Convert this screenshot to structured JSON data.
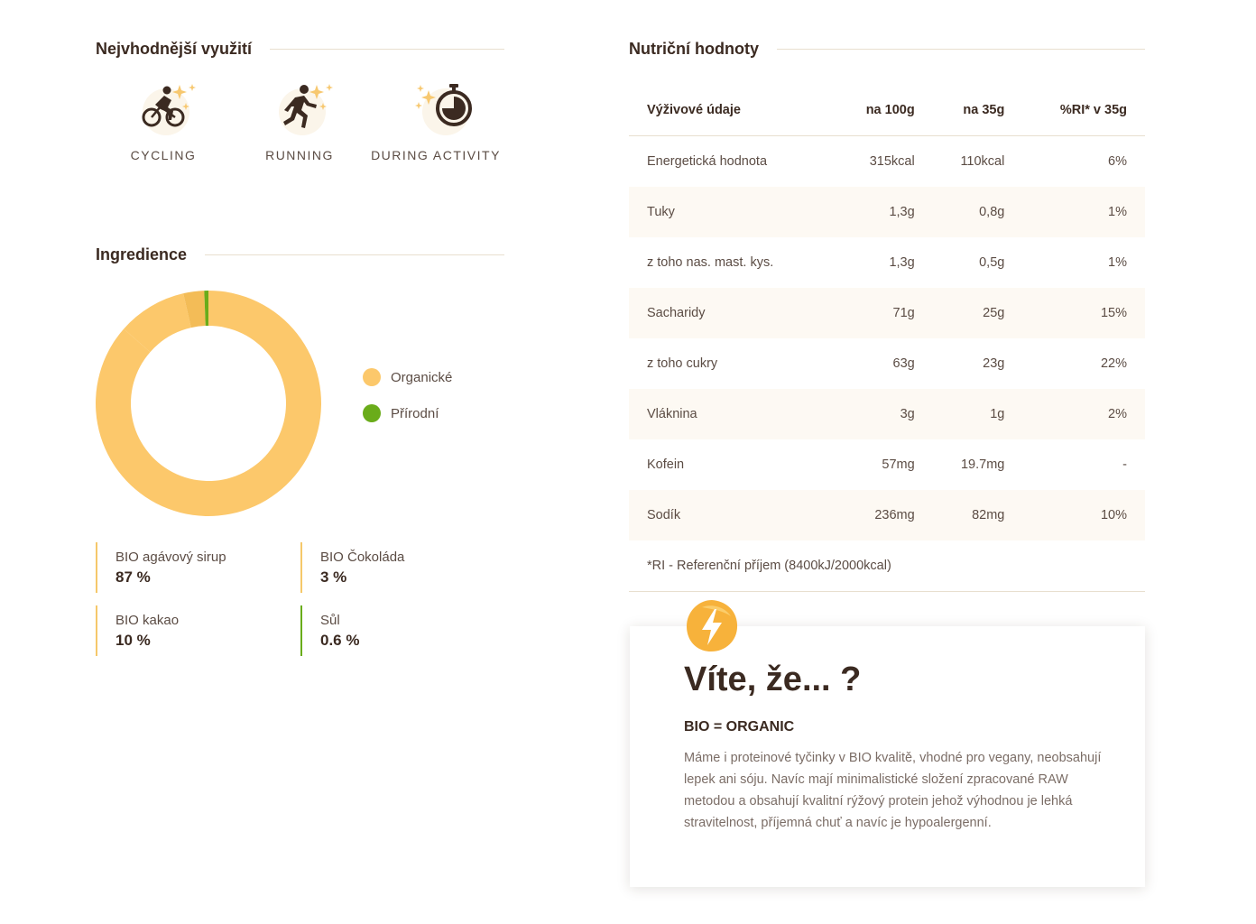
{
  "usage": {
    "title": "Nejvhodnější využití",
    "items": [
      {
        "label": "CYCLING",
        "icon": "cycling-icon"
      },
      {
        "label": "RUNNING",
        "icon": "running-icon"
      },
      {
        "label": "DURING ACTIVITY",
        "icon": "stopwatch-icon"
      }
    ]
  },
  "ingredients": {
    "title": "Ingredience",
    "legend": [
      {
        "label": "Organické",
        "color": "#fcc86b"
      },
      {
        "label": "Přírodní",
        "color": "#6aac1a"
      }
    ],
    "items": [
      {
        "name": "BIO agávový sirup",
        "pct": "87 %"
      },
      {
        "name": "BIO Čokoláda",
        "pct": "3 %"
      },
      {
        "name": "BIO kakao",
        "pct": "10 %"
      },
      {
        "name": "Sůl",
        "pct": "0.6 %"
      }
    ]
  },
  "chart_data": {
    "type": "pie",
    "categories": [
      "BIO agávový sirup",
      "BIO kakao",
      "BIO Čokoláda",
      "Sůl"
    ],
    "values": [
      87,
      10,
      3,
      0.6
    ],
    "groups": [
      "Organické",
      "Organické",
      "Organické",
      "Přírodní"
    ],
    "colors": [
      "#fcc86b",
      "#fcc86b",
      "#f3bc57",
      "#6aac1a"
    ],
    "legend_position": "right"
  },
  "nutrition": {
    "title": "Nutriční hodnoty",
    "headers": [
      "Výživové údaje",
      "na 100g",
      "na 35g",
      "%RI* v 35g"
    ],
    "rows": [
      [
        "Energetická hodnota",
        "315kcal",
        "110kcal",
        "6%"
      ],
      [
        "Tuky",
        "1,3g",
        "0,8g",
        "1%"
      ],
      [
        "z toho nas. mast. kys.",
        "1,3g",
        "0,5g",
        "1%"
      ],
      [
        "Sacharidy",
        "71g",
        "25g",
        "15%"
      ],
      [
        "z toho cukry",
        "63g",
        "23g",
        "22%"
      ],
      [
        "Vláknina",
        "3g",
        "1g",
        "2%"
      ],
      [
        "Kofein",
        "57mg",
        "19.7mg",
        "-"
      ],
      [
        "Sodík",
        "236mg",
        "82mg",
        "10%"
      ]
    ],
    "note": "*RI - Referenční příjem (8400kJ/2000kcal)"
  },
  "card": {
    "title": "Víte, že... ?",
    "subtitle": "BIO = ORGANIC",
    "text": "Máme i proteinové tyčinky v BIO kvalitě, vhodné pro vegany, neobsahují lepek ani sóju. Navíc mají minimalistické složení zpracované RAW metodou a obsahují kvalitní rýžový protein jehož výhodnou je lehká stravitelnost, příjemná chuť a navíc je hypoalergenní."
  }
}
